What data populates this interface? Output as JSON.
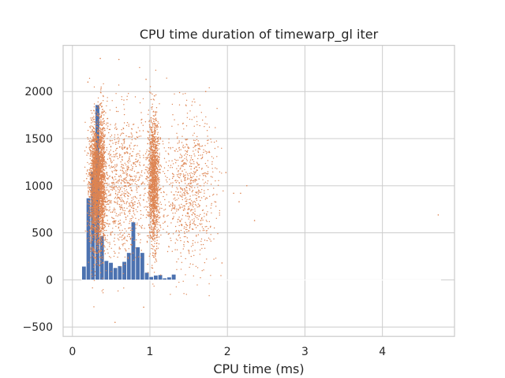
{
  "chart_data": {
    "type": "scatter",
    "title": "CPU time duration of timewarp_gl iter",
    "xlabel": "CPU time (ms)",
    "ylabel": "",
    "xlim": [
      -0.12,
      4.93
    ],
    "ylim": [
      -600,
      2490
    ],
    "xticks": [
      0,
      1,
      2,
      3,
      4
    ],
    "xtick_labels": [
      "0",
      "1",
      "2",
      "3",
      "4"
    ],
    "yticks": [
      -500,
      0,
      500,
      1000,
      1500,
      2000
    ],
    "ytick_labels": [
      "−500",
      "0",
      "500",
      "1000",
      "1500",
      "2000"
    ],
    "grid": true,
    "colors": {
      "histogram": "#4c72b0",
      "scatter": "#dd8452",
      "grid": "#cccccc",
      "background": "#ffffff"
    },
    "histogram": {
      "bin_start": 0.12,
      "bin_width": 0.0579,
      "counts": [
        145,
        870,
        1150,
        1860,
        470,
        205,
        185,
        130,
        150,
        195,
        290,
        615,
        350,
        290,
        80,
        35,
        50,
        55,
        20,
        30,
        60,
        5,
        2,
        2,
        2,
        1,
        1,
        1,
        1,
        1,
        1,
        1,
        1,
        1,
        1,
        1,
        1,
        1,
        1,
        1,
        1,
        1,
        1,
        1,
        1,
        1,
        1,
        1,
        1,
        1,
        1,
        1,
        1,
        1,
        1,
        1,
        1,
        1,
        1,
        1,
        1,
        1,
        1,
        1,
        1,
        1,
        1,
        1,
        1,
        1,
        1,
        1,
        1,
        1,
        1,
        1,
        1,
        1,
        1,
        1
      ]
    },
    "scatter_clusters": [
      {
        "x_center": 0.3,
        "x_spread": 0.04,
        "y_center": 1000,
        "y_spread": 320,
        "count": 2200
      },
      {
        "x_center": 0.38,
        "x_spread": 0.025,
        "y_center": 1050,
        "y_spread": 380,
        "count": 900
      },
      {
        "x_center": 1.05,
        "x_spread": 0.035,
        "y_center": 1050,
        "y_spread": 330,
        "count": 1500
      },
      {
        "x_center": 0.65,
        "x_spread": 0.18,
        "y_center": 1000,
        "y_spread": 380,
        "count": 900
      },
      {
        "x_center": 1.5,
        "x_spread": 0.18,
        "y_center": 950,
        "y_spread": 400,
        "count": 800
      }
    ],
    "scatter_outliers": [
      {
        "x": 0.36,
        "y": 2350
      },
      {
        "x": 0.6,
        "y": 2340
      },
      {
        "x": 0.2,
        "y": 2100
      },
      {
        "x": 0.95,
        "y": 2130
      },
      {
        "x": 1.72,
        "y": 2000
      },
      {
        "x": 2.08,
        "y": 920
      },
      {
        "x": 2.17,
        "y": 920
      },
      {
        "x": 2.25,
        "y": 1000
      },
      {
        "x": 2.35,
        "y": 630
      },
      {
        "x": 2.15,
        "y": 830
      },
      {
        "x": 4.72,
        "y": 690
      },
      {
        "x": 0.55,
        "y": -450
      },
      {
        "x": 0.92,
        "y": -290
      },
      {
        "x": 1.93,
        "y": 180
      },
      {
        "x": 1.98,
        "y": 1140
      }
    ]
  }
}
